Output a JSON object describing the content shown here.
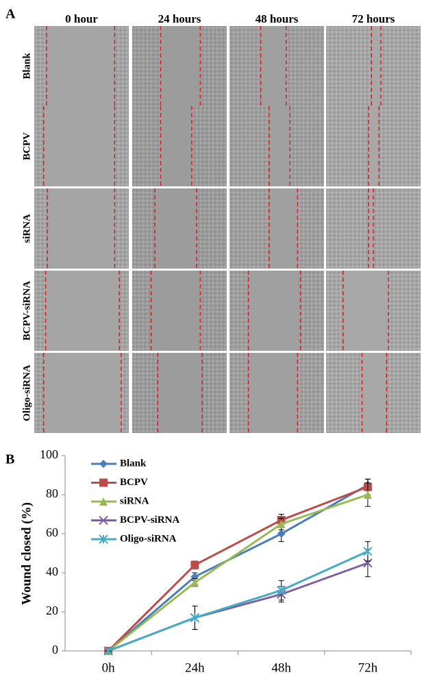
{
  "panel_a": {
    "label": "A",
    "columns": [
      "0 hour",
      "24 hours",
      "48 hours",
      "72 hours"
    ],
    "rows": [
      "Blank",
      "BCPV",
      "siRNA",
      "BCPV-siRNA",
      "Oligo-siRNA"
    ]
  },
  "panel_b_label": "B",
  "chart_data": {
    "type": "line",
    "y_label": "Wound closed (%)",
    "categories": [
      "0h",
      "24h",
      "48h",
      "72h"
    ],
    "ylim": [
      0,
      100
    ],
    "yticks": [
      0,
      20,
      40,
      60,
      80,
      100
    ],
    "series": [
      {
        "name": "Blank",
        "color": "#4a7ebb",
        "marker": "diamond",
        "values": [
          0,
          38,
          60,
          85
        ],
        "errors": [
          0,
          2,
          4,
          3
        ]
      },
      {
        "name": "BCPV",
        "color": "#be4b48",
        "marker": "square",
        "values": [
          0,
          44,
          67,
          84
        ],
        "errors": [
          0,
          2,
          3,
          4
        ]
      },
      {
        "name": "siRNA",
        "color": "#98b954",
        "marker": "triangle",
        "values": [
          0,
          35,
          65,
          80
        ],
        "errors": [
          0,
          2,
          3,
          6
        ]
      },
      {
        "name": "BCPV-siRNA",
        "color": "#7d60a0",
        "marker": "x",
        "values": [
          0,
          17,
          29,
          45
        ],
        "errors": [
          0,
          6,
          4,
          7
        ]
      },
      {
        "name": "Oligo-siRNA",
        "color": "#46aac5",
        "marker": "star",
        "values": [
          0,
          17,
          31,
          51
        ],
        "errors": [
          0,
          6,
          5,
          5
        ]
      }
    ]
  }
}
